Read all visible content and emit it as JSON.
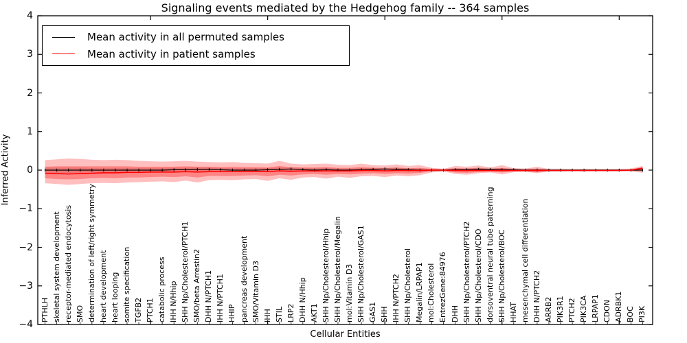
{
  "chart_data": {
    "type": "line",
    "title": "Signaling events mediated by the Hedgehog family -- 364 samples",
    "xlabel": "Cellular Entities",
    "ylabel": "Inferred Activity",
    "ylim": [
      -4,
      4
    ],
    "grid": false,
    "legend_position": "upper left",
    "y_tick_values": [
      4,
      3,
      2,
      1,
      0,
      -1,
      -2,
      -3,
      -4
    ],
    "y_tick_labels": [
      "4",
      "3",
      "2",
      "1",
      "0",
      "−1",
      "−2",
      "−3",
      "−4"
    ],
    "x_major_tick_values": [
      10,
      20,
      30,
      40,
      50
    ],
    "legend": [
      {
        "label": "Mean activity in all permuted samples",
        "color": "#000000"
      },
      {
        "label": "Mean activity in patient samples",
        "color": "#ff0000"
      }
    ],
    "categories": [
      "PTHLH",
      "skeletal system development",
      "receptor-mediated endocytosis",
      "SMO",
      "determination of left/right symmetry",
      "heart development",
      "heart looping",
      "somite specification",
      "TGFB2",
      "PTCH1",
      "catabolic process",
      "IHH N/Hhip",
      "SHH Np/Cholesterol/PTCH1",
      "SMO/beta Arrestin2",
      "DHH N/PTCH1",
      "IHH N/PTCH1",
      "HHIP",
      "pancreas development",
      "SMO/Vitamin D3",
      "IHH",
      "STIL",
      "LRP2",
      "DHH N/Hhip",
      "AKT1",
      "SHH Np/Cholesterol/Hhip",
      "SHH Np/Cholesterol/Megalin",
      "mol:Vitamin D3",
      "SHH Np/Cholesterol/GAS1",
      "GAS1",
      "SHH",
      "IHH N/PTCH2",
      "SHH Np/Cholesterol",
      "Megalin/LRPAP1",
      "mol:Cholesterol",
      "EntrezGene:84976",
      "DHH",
      "SHH Np/Cholesterol/PTCH2",
      "SHH Np/Cholesterol/CDO",
      "dorsoventral neural tube patterning",
      "SHH Np/Cholesterol/BOC",
      "HHAT",
      "mesenchymal cell differentiation",
      "DHH N/PTCH2",
      "ARRB2",
      "PIK3R1",
      "PTCH2",
      "PIK3CA",
      "LRPAP1",
      "CDON",
      "ADRBK1",
      "BOC",
      "PI3K"
    ],
    "series": [
      {
        "name": "Mean activity in all permuted samples",
        "color": "#000000",
        "values": [
          0,
          0,
          0,
          0,
          0,
          0,
          0,
          0,
          0,
          0,
          0,
          0.01,
          0.01,
          0.02,
          0.02,
          0.01,
          0,
          0,
          0,
          0.01,
          0.02,
          0.03,
          0.01,
          0,
          0.01,
          0,
          0,
          0.01,
          0.02,
          0.03,
          0.02,
          0.01,
          0,
          0,
          0,
          0.01,
          0.01,
          0.02,
          0.02,
          0.01,
          0.01,
          0,
          0,
          0,
          0,
          0,
          0,
          0,
          0,
          0,
          0,
          0
        ]
      },
      {
        "name": "Mean activity in patient samples",
        "color": "#ff0000",
        "values": [
          -0.08,
          -0.09,
          -0.1,
          -0.09,
          -0.08,
          -0.07,
          -0.07,
          -0.06,
          -0.06,
          -0.05,
          -0.05,
          -0.05,
          -0.04,
          -0.05,
          -0.04,
          -0.04,
          -0.04,
          -0.03,
          -0.03,
          -0.04,
          -0.02,
          -0.03,
          -0.02,
          -0.02,
          -0.02,
          -0.02,
          -0.02,
          -0.01,
          -0.01,
          -0.02,
          -0.01,
          -0.01,
          -0.01,
          0,
          0,
          -0.01,
          -0.01,
          -0.01,
          -0.01,
          -0.01,
          -0.01,
          -0.01,
          -0.01,
          -0.01,
          -0.01,
          -0.01,
          -0.01,
          -0.01,
          -0.01,
          -0.01,
          0,
          0.05
        ]
      }
    ],
    "bands": [
      {
        "name": "permuted-samples-range",
        "color": "#555555",
        "opacity": 0.18,
        "top": [
          0.07,
          0.07,
          0.07,
          0.07,
          0.06,
          0.06,
          0.06,
          0.06,
          0.06,
          0.06,
          0.06,
          0.07,
          0.07,
          0.08,
          0.07,
          0.06,
          0.05,
          0.05,
          0.05,
          0.06,
          0.07,
          0.08,
          0.06,
          0.05,
          0.06,
          0.04,
          0.04,
          0.05,
          0.06,
          0.07,
          0.06,
          0.05,
          0.04,
          0.04,
          0.04,
          0.05,
          0.05,
          0.06,
          0.06,
          0.05,
          0.05,
          0.04,
          0.04,
          0.04,
          0.04,
          0.03,
          0.03,
          0.03,
          0.03,
          0.03,
          0.03,
          0.04
        ],
        "bottom": [
          -0.07,
          -0.07,
          -0.07,
          -0.07,
          -0.06,
          -0.06,
          -0.06,
          -0.06,
          -0.06,
          -0.06,
          -0.06,
          -0.05,
          -0.05,
          -0.04,
          -0.03,
          -0.04,
          -0.05,
          -0.05,
          -0.05,
          -0.04,
          -0.03,
          -0.02,
          -0.04,
          -0.05,
          -0.04,
          -0.04,
          -0.04,
          -0.03,
          -0.02,
          -0.01,
          -0.02,
          -0.03,
          -0.04,
          -0.04,
          -0.04,
          -0.03,
          -0.03,
          -0.02,
          -0.02,
          -0.03,
          -0.03,
          -0.04,
          -0.04,
          -0.04,
          -0.04,
          -0.03,
          -0.03,
          -0.03,
          -0.03,
          -0.03,
          -0.03,
          -0.04
        ]
      },
      {
        "name": "patient-samples-outer-range",
        "color": "#ff0000",
        "opacity": 0.25,
        "top": [
          0.26,
          0.28,
          0.3,
          0.29,
          0.27,
          0.26,
          0.27,
          0.26,
          0.24,
          0.23,
          0.22,
          0.23,
          0.24,
          0.22,
          0.21,
          0.2,
          0.21,
          0.19,
          0.18,
          0.17,
          0.24,
          0.17,
          0.15,
          0.16,
          0.17,
          0.14,
          0.13,
          0.17,
          0.13,
          0.12,
          0.15,
          0.11,
          0.13,
          0.06,
          0.03,
          0.11,
          0.09,
          0.12,
          0.07,
          0.13,
          0.05,
          0.04,
          0.09,
          0.03,
          0.03,
          0.03,
          0.03,
          0.03,
          0.03,
          0.03,
          0.04,
          0.11
        ],
        "bottom": [
          -0.34,
          -0.36,
          -0.38,
          -0.36,
          -0.34,
          -0.33,
          -0.34,
          -0.32,
          -0.31,
          -0.3,
          -0.29,
          -0.31,
          -0.27,
          -0.32,
          -0.26,
          -0.25,
          -0.26,
          -0.24,
          -0.23,
          -0.28,
          -0.21,
          -0.25,
          -0.19,
          -0.18,
          -0.22,
          -0.17,
          -0.2,
          -0.16,
          -0.15,
          -0.18,
          -0.14,
          -0.16,
          -0.13,
          -0.06,
          -0.03,
          -0.1,
          -0.12,
          -0.08,
          -0.06,
          -0.11,
          -0.05,
          -0.04,
          -0.08,
          -0.03,
          -0.03,
          -0.02,
          -0.03,
          -0.02,
          -0.03,
          -0.02,
          -0.03,
          -0.07
        ]
      },
      {
        "name": "patient-samples-inner-range",
        "color": "#ff0000",
        "opacity": 0.3,
        "top": [
          0.09,
          0.1,
          0.1,
          0.1,
          0.1,
          0.1,
          0.1,
          0.1,
          0.09,
          0.09,
          0.09,
          0.09,
          0.1,
          0.09,
          0.09,
          0.08,
          0.09,
          0.08,
          0.08,
          0.07,
          0.11,
          0.07,
          0.07,
          0.07,
          0.08,
          0.06,
          0.06,
          0.08,
          0.06,
          0.05,
          0.07,
          0.05,
          0.06,
          0.03,
          0.02,
          0.05,
          0.04,
          0.06,
          0.03,
          0.06,
          0.02,
          0.02,
          0.04,
          0.01,
          0.01,
          0.01,
          0.01,
          0.01,
          0.01,
          0.01,
          0.02,
          0.08
        ],
        "bottom": [
          -0.21,
          -0.23,
          -0.24,
          -0.23,
          -0.21,
          -0.2,
          -0.21,
          -0.19,
          -0.19,
          -0.18,
          -0.17,
          -0.18,
          -0.16,
          -0.19,
          -0.15,
          -0.15,
          -0.15,
          -0.14,
          -0.13,
          -0.16,
          -0.12,
          -0.14,
          -0.11,
          -0.1,
          -0.12,
          -0.1,
          -0.11,
          -0.09,
          -0.08,
          -0.1,
          -0.08,
          -0.09,
          -0.07,
          -0.03,
          -0.02,
          -0.06,
          -0.07,
          -0.05,
          -0.04,
          -0.06,
          -0.03,
          -0.03,
          -0.05,
          -0.02,
          -0.02,
          -0.02,
          -0.02,
          -0.02,
          -0.02,
          -0.02,
          -0.02,
          -0.01
        ]
      }
    ]
  }
}
